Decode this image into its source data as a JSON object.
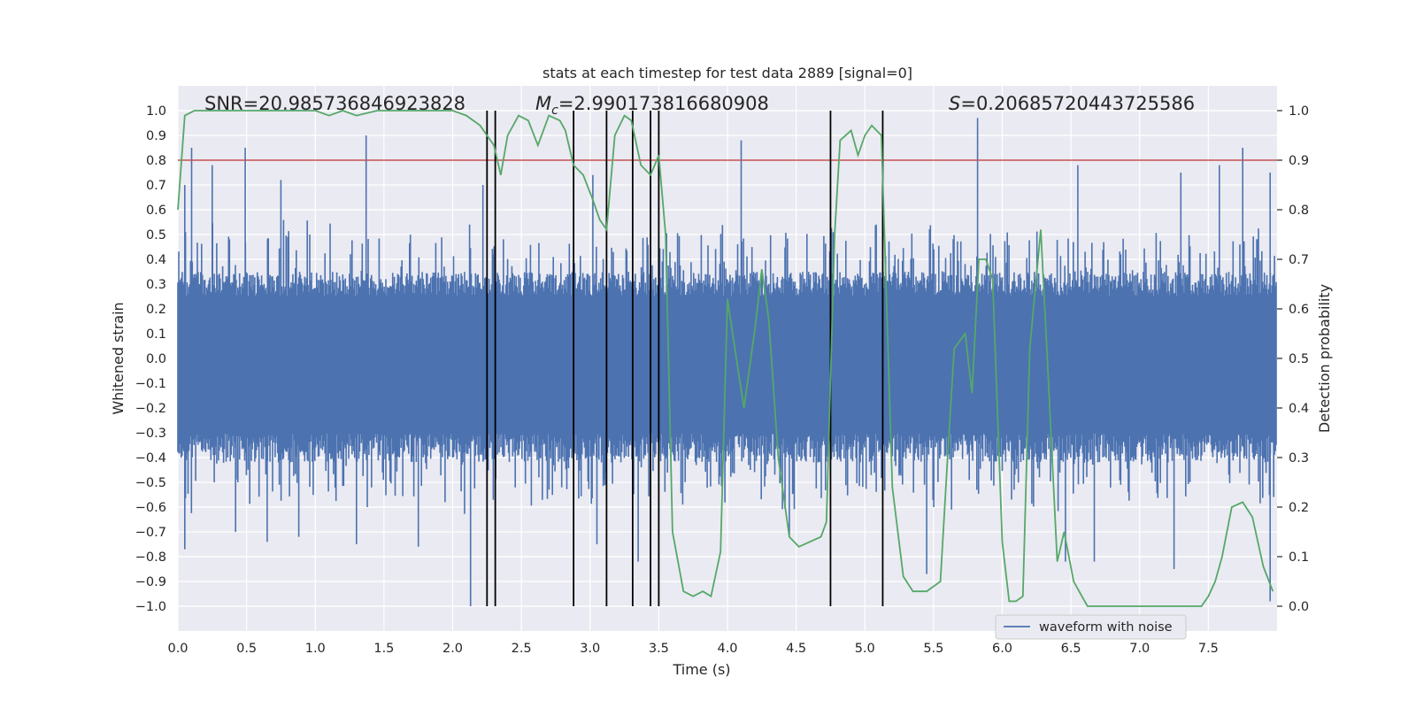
{
  "chart_data": {
    "type": "line",
    "title": "stats at each timestep for test data 2889 [signal=0]",
    "xlabel": "Time (s)",
    "ylabel_left": "Whitened strain",
    "ylabel_right": "Detection probability",
    "xlim": [
      0.0,
      8.0
    ],
    "ylim_left": [
      -1.1,
      1.1
    ],
    "ylim_right": [
      -0.05,
      1.05
    ],
    "x_ticks": [
      "0.0",
      "0.5",
      "1.0",
      "1.5",
      "2.0",
      "2.5",
      "3.0",
      "3.5",
      "4.0",
      "4.5",
      "5.0",
      "5.5",
      "6.0",
      "6.5",
      "7.0",
      "7.5"
    ],
    "y_ticks_left": [
      "1.0",
      "0.9",
      "0.8",
      "0.7",
      "0.6",
      "0.5",
      "0.4",
      "0.3",
      "0.2",
      "0.1",
      "0.0",
      "−0.1",
      "−0.2",
      "−0.3",
      "−0.4",
      "−0.5",
      "−0.6",
      "−0.7",
      "−0.8",
      "−0.9",
      "−1.0"
    ],
    "y_ticks_right": [
      "1.0",
      "0.9",
      "0.8",
      "0.7",
      "0.6",
      "0.5",
      "0.4",
      "0.3",
      "0.2",
      "0.1",
      "0.0"
    ],
    "annotations": {
      "snr": "SNR=20.985736846923828",
      "mc_symbol": "M",
      "mc_sub": "c",
      "mc_value": "=2.990173816680908",
      "s_symbol": "S",
      "s_value": "=0.20685720443725586"
    },
    "threshold": 0.9,
    "threshold_color": "#c44e52",
    "noise_color": "#4c72b0",
    "prob_color": "#55a868",
    "marker_color": "#000000",
    "marker_times": [
      2.25,
      2.31,
      2.88,
      3.12,
      3.31,
      3.44,
      3.5,
      4.75,
      5.13
    ],
    "waveform_envelope": {
      "upper_typical": 0.35,
      "lower_typical": -0.42,
      "peak_times": [
        0.05,
        0.1,
        0.25,
        0.49,
        0.75,
        1.37,
        2.22,
        3.02,
        4.1,
        5.82,
        6.55,
        7.3,
        7.58,
        7.75,
        7.95
      ],
      "peak_values": [
        0.7,
        0.85,
        0.78,
        0.85,
        0.72,
        0.9,
        0.7,
        0.74,
        0.88,
        0.97,
        0.78,
        0.75,
        0.78,
        0.85,
        0.75
      ],
      "trough_times": [
        0.05,
        0.42,
        0.65,
        0.88,
        1.3,
        1.75,
        2.13,
        3.05,
        3.35,
        4.45,
        5.45,
        6.46,
        6.67,
        7.25,
        7.95
      ],
      "trough_values": [
        -0.77,
        -0.7,
        -0.74,
        -0.72,
        -0.75,
        -0.76,
        -1.0,
        -0.75,
        -0.82,
        -0.72,
        -0.87,
        -0.82,
        -0.82,
        -0.85,
        -0.98
      ]
    },
    "detection_probability": {
      "x": [
        0.0,
        0.05,
        0.12,
        0.3,
        0.6,
        0.8,
        1.0,
        1.1,
        1.2,
        1.3,
        1.45,
        1.6,
        1.8,
        2.0,
        2.1,
        2.2,
        2.3,
        2.35,
        2.4,
        2.48,
        2.55,
        2.62,
        2.7,
        2.78,
        2.82,
        2.88,
        2.95,
        3.02,
        3.07,
        3.12,
        3.18,
        3.25,
        3.3,
        3.37,
        3.44,
        3.5,
        3.55,
        3.6,
        3.68,
        3.75,
        3.82,
        3.88,
        3.95,
        4.0,
        4.07,
        4.12,
        4.2,
        4.25,
        4.3,
        4.37,
        4.45,
        4.52,
        4.6,
        4.68,
        4.72,
        4.78,
        4.82,
        4.9,
        4.95,
        5.0,
        5.05,
        5.12,
        5.2,
        5.28,
        5.35,
        5.45,
        5.55,
        5.6,
        5.65,
        5.73,
        5.78,
        5.83,
        5.88,
        5.93,
        6.0,
        6.05,
        6.1,
        6.15,
        6.2,
        6.28,
        6.33,
        6.4,
        6.45,
        6.52,
        6.58,
        6.62,
        6.68,
        6.8,
        7.0,
        7.2,
        7.35,
        7.45,
        7.5,
        7.55,
        7.6,
        7.67,
        7.75,
        7.82,
        7.9,
        7.97
      ],
      "y": [
        0.8,
        0.99,
        1.0,
        1.0,
        1.0,
        1.0,
        1.0,
        0.99,
        1.0,
        0.99,
        1.0,
        1.0,
        1.0,
        1.0,
        0.99,
        0.97,
        0.93,
        0.87,
        0.95,
        0.99,
        0.98,
        0.93,
        0.99,
        0.98,
        0.96,
        0.89,
        0.87,
        0.82,
        0.78,
        0.76,
        0.95,
        0.99,
        0.98,
        0.89,
        0.87,
        0.91,
        0.75,
        0.15,
        0.03,
        0.02,
        0.03,
        0.02,
        0.11,
        0.62,
        0.49,
        0.4,
        0.56,
        0.68,
        0.58,
        0.3,
        0.14,
        0.12,
        0.13,
        0.14,
        0.17,
        0.75,
        0.94,
        0.96,
        0.91,
        0.95,
        0.97,
        0.95,
        0.24,
        0.06,
        0.03,
        0.03,
        0.05,
        0.29,
        0.52,
        0.55,
        0.43,
        0.7,
        0.7,
        0.66,
        0.13,
        0.01,
        0.01,
        0.02,
        0.52,
        0.76,
        0.49,
        0.09,
        0.15,
        0.05,
        0.02,
        0.0,
        0.0,
        0.0,
        0.0,
        0.0,
        0.0,
        0.0,
        0.02,
        0.05,
        0.1,
        0.2,
        0.21,
        0.18,
        0.08,
        0.03
      ]
    },
    "legend": {
      "label": "waveform with noise",
      "position": "lower-center-right"
    }
  }
}
